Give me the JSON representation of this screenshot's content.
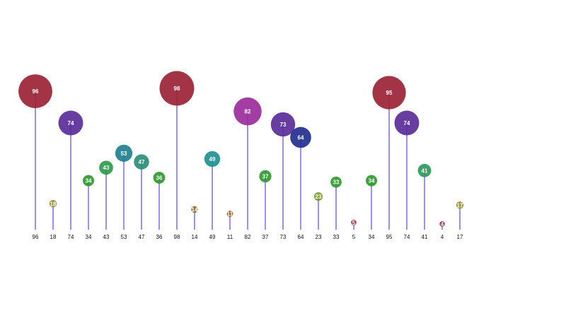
{
  "chart_data": {
    "type": "lollipop-bubble",
    "title": "",
    "xlabel": "",
    "ylabel": "",
    "ylim": [
      0,
      100
    ],
    "grid": false,
    "legend": "none",
    "categories": [
      "96",
      "18",
      "74",
      "34",
      "43",
      "53",
      "47",
      "36",
      "98",
      "14",
      "49",
      "11",
      "82",
      "37",
      "73",
      "64",
      "23",
      "33",
      "5",
      "34",
      "95",
      "74",
      "41",
      "4",
      "17"
    ],
    "values": [
      96,
      18,
      74,
      34,
      43,
      53,
      47,
      36,
      98,
      14,
      49,
      11,
      82,
      37,
      73,
      64,
      23,
      33,
      5,
      34,
      95,
      74,
      41,
      4,
      17
    ],
    "colors": [
      "#9b2335",
      "#9b8e2a",
      "#5b2c99",
      "#2e9a2e",
      "#2e9a4a",
      "#20808f",
      "#2a8f78",
      "#2e9a2e",
      "#9b2335",
      "#8f6a22",
      "#209090",
      "#9b5a22",
      "#9b2b9b",
      "#2e9a2e",
      "#5b2c99",
      "#23308f",
      "#7a9b2a",
      "#2e9a2e",
      "#9b2335",
      "#2e9a2e",
      "#9b2335",
      "#5b2c99",
      "#2e9a5a",
      "#9b2335",
      "#9b8e2a"
    ],
    "stem_color": "#7b68ee"
  }
}
